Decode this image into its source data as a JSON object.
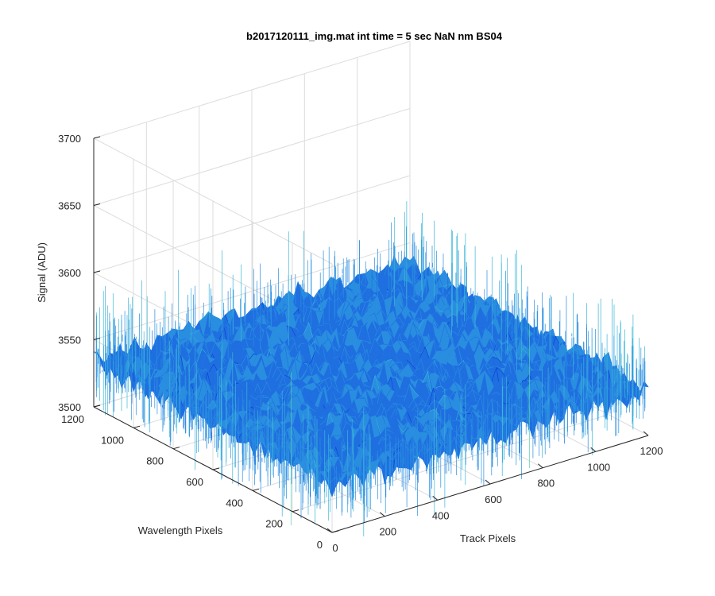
{
  "chart_data": {
    "type": "surface",
    "title": "b2017120111_img.mat int time = 5 sec  NaN nm BS04",
    "xlabel": "Track Pixels",
    "ylabel": "Wavelength Pixels",
    "zlabel": "Signal (ADU)",
    "xlim": [
      0,
      1200
    ],
    "ylim": [
      0,
      1200
    ],
    "zlim": [
      3500,
      3700
    ],
    "x_ticks": [
      "0",
      "200",
      "400",
      "600",
      "800",
      "1000",
      "1200"
    ],
    "y_ticks": [
      "0",
      "200",
      "400",
      "600",
      "800",
      "1000",
      "1200"
    ],
    "z_ticks": [
      "3500",
      "3550",
      "3600",
      "3650",
      "3700"
    ],
    "grid": true,
    "surface": {
      "x_range": [
        0,
        1200
      ],
      "y_range": [
        0,
        1200
      ],
      "mean_signal": 3535,
      "noise_range": [
        3505,
        3600
      ],
      "colormap": [
        "#0a3fd6",
        "#1f6fe0",
        "#2a8ee0",
        "#3ab5d8",
        "#5ccfb0",
        "#c8d040"
      ]
    }
  }
}
